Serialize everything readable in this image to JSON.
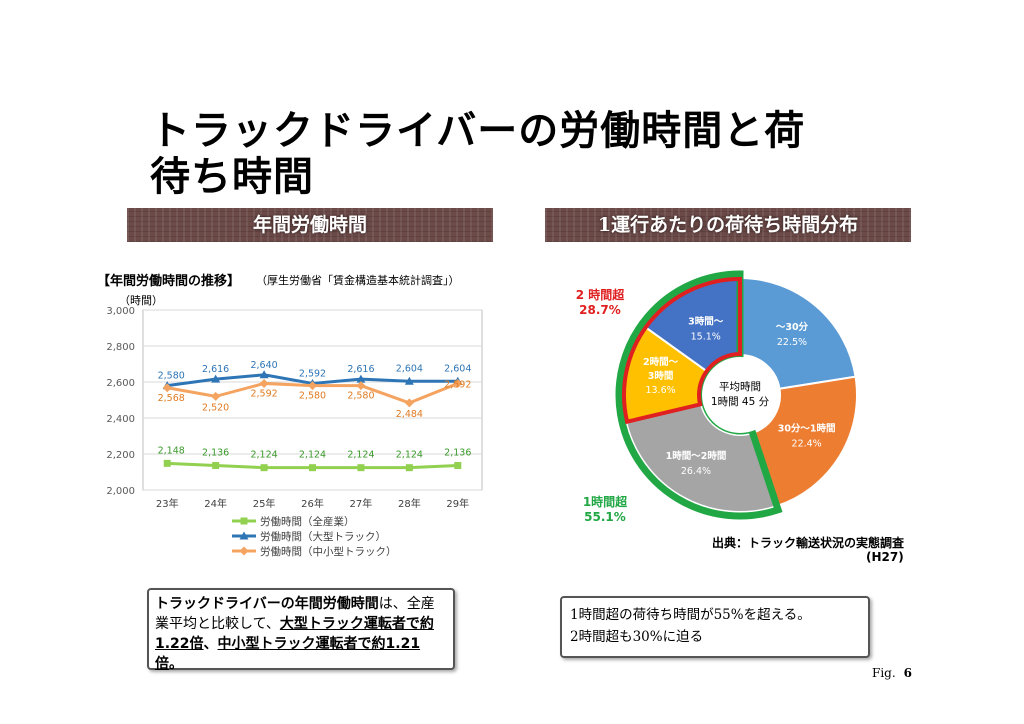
{
  "page": {
    "title_line1": "トラックドライバーの労働時間と荷",
    "title_line2": "待ち時間",
    "banner_left": "年間労働時間",
    "banner_right": "1運行あたりの荷待ち時間分布",
    "fig_label": "Fig.",
    "fig_number": "6"
  },
  "left_caption": {
    "heading": "【年間労働時間の推移】",
    "source": "（厚生労働省「賃金構造基本統計調査」）",
    "unit": "（時間）"
  },
  "note_left": {
    "p1": "トラックドライバーの",
    "p2": "年間労働時間",
    "p3": "は、全産業平均と比較して、",
    "p4": "大型トラック運転者で約1.22倍",
    "p5": "、",
    "p6": "中小型トラック運転者で約1.21倍",
    "p7": "。"
  },
  "note_right": {
    "line1": "1時間超の荷待ち時間が55%を超える。",
    "line2": "2時間超も30%に迫る"
  },
  "pie_source": {
    "line1": "出典：トラック輸送状況の実態調査",
    "line2": "(H27)"
  },
  "chart_data": [
    {
      "type": "line",
      "title": "年間労働時間の推移",
      "ylabel": "時間",
      "ylim": [
        2000,
        3000
      ],
      "yticks": [
        "2,000",
        "2,200",
        "2,400",
        "2,600",
        "2,800",
        "3,000"
      ],
      "categories": [
        "23年",
        "24年",
        "25年",
        "26年",
        "27年",
        "28年",
        "29年"
      ],
      "series": [
        {
          "name": "労働時間（全産業）",
          "color": "#92d050",
          "values": [
            2148,
            2136,
            2124,
            2124,
            2124,
            2124,
            2136
          ],
          "labels": [
            "2,148",
            "2,136",
            "2,124",
            "2,124",
            "2,124",
            "2,124",
            "2,136"
          ]
        },
        {
          "name": "労働時間（大型トラック）",
          "color": "#2e75b6",
          "values": [
            2580,
            2616,
            2640,
            2592,
            2616,
            2604,
            2604
          ],
          "labels": [
            "2,580",
            "2,616",
            "2,640",
            "2,592",
            "2,616",
            "2,604",
            "2,604"
          ]
        },
        {
          "name": "労働時間（中小型トラック）",
          "color": "#f4a460",
          "values": [
            2568,
            2520,
            2592,
            2580,
            2580,
            2484,
            2592
          ],
          "labels": [
            "2,568",
            "2,520",
            "2,592",
            "2,580",
            "2,580",
            "2,484",
            "2,592"
          ]
        }
      ]
    },
    {
      "type": "pie",
      "title": "1運行あたりの荷待ち時間分布",
      "center_label": [
        "平均時間",
        "1時間 45 分"
      ],
      "slices": [
        {
          "label": "～30分",
          "value": 22.5,
          "pct": "22.5%",
          "color": "#5b9bd5"
        },
        {
          "label": "30分～1時間",
          "value": 22.4,
          "pct": "22.4%",
          "color": "#ed7d31"
        },
        {
          "label": "1時間～2時間",
          "value": 26.4,
          "pct": "26.4%",
          "color": "#a5a5a5"
        },
        {
          "label": "2時間～3時間",
          "value": 13.6,
          "pct": "13.6%",
          "color": "#ffc000"
        },
        {
          "label": "3時間～",
          "value": 15.1,
          "pct": "15.1%",
          "color": "#4472c4"
        }
      ],
      "groups": [
        {
          "label": "2 時間超",
          "pct": "28.7%",
          "color": "#e02020"
        },
        {
          "label": "1時間超",
          "pct": "55.1%",
          "color": "#22a745"
        }
      ]
    }
  ]
}
